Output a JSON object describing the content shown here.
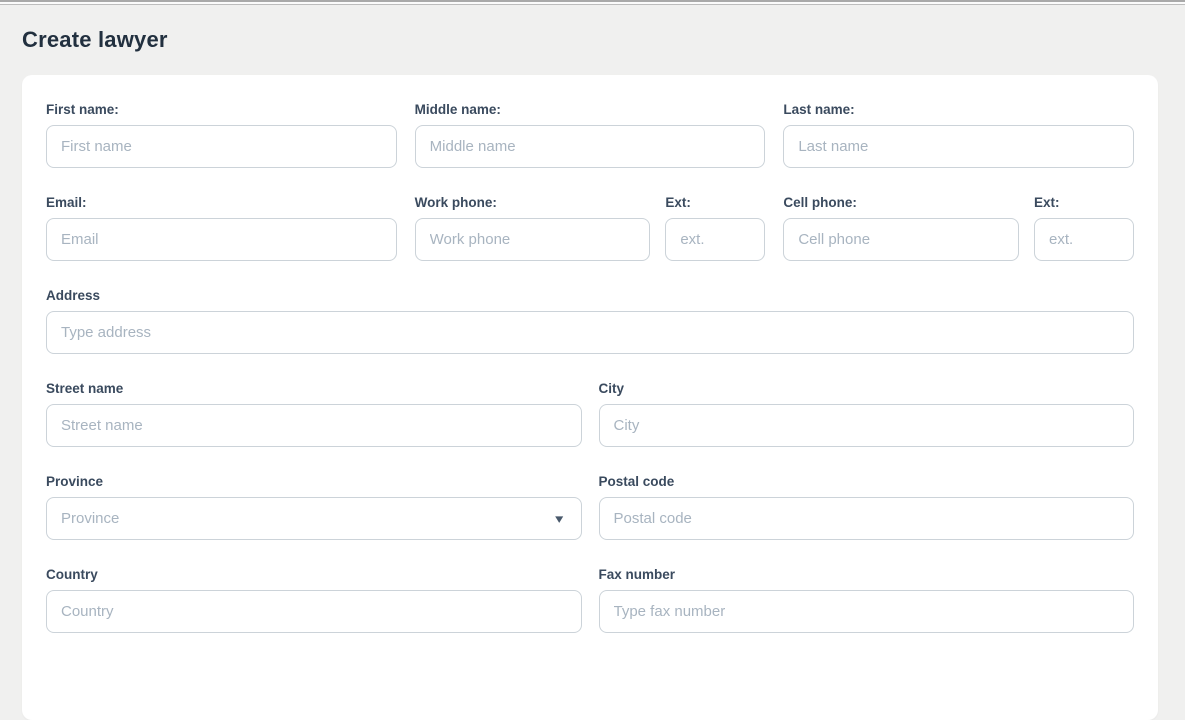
{
  "page": {
    "title": "Create lawyer"
  },
  "form": {
    "first_name": {
      "label": "First name:",
      "placeholder": "First name",
      "value": ""
    },
    "middle_name": {
      "label": "Middle name:",
      "placeholder": "Middle name",
      "value": ""
    },
    "last_name": {
      "label": "Last name:",
      "placeholder": "Last name",
      "value": ""
    },
    "email": {
      "label": "Email:",
      "placeholder": "Email",
      "value": ""
    },
    "work_phone": {
      "label": "Work phone:",
      "placeholder": "Work phone",
      "value": ""
    },
    "work_ext": {
      "label": "Ext:",
      "placeholder": "ext.",
      "value": ""
    },
    "cell_phone": {
      "label": "Cell phone:",
      "placeholder": "Cell phone",
      "value": ""
    },
    "cell_ext": {
      "label": "Ext:",
      "placeholder": "ext.",
      "value": ""
    },
    "address": {
      "label": "Address",
      "placeholder": "Type address",
      "value": ""
    },
    "street_name": {
      "label": "Street name",
      "placeholder": "Street name",
      "value": ""
    },
    "city": {
      "label": "City",
      "placeholder": "City",
      "value": ""
    },
    "province": {
      "label": "Province",
      "placeholder": "Province",
      "value": ""
    },
    "postal_code": {
      "label": "Postal code",
      "placeholder": "Postal code",
      "value": ""
    },
    "country": {
      "label": "Country",
      "placeholder": "Country",
      "value": ""
    },
    "fax_number": {
      "label": "Fax number",
      "placeholder": "Type fax number",
      "value": ""
    }
  },
  "icons": {
    "dropdown_caret": "▾"
  },
  "colors": {
    "page_bg": "#f0f0ef",
    "card_bg": "#ffffff",
    "title_text": "#22303f",
    "label_text": "#3a4a5e",
    "placeholder_text": "#a8b4c0",
    "input_border": "#ccd3d9",
    "caret": "#49596b"
  }
}
